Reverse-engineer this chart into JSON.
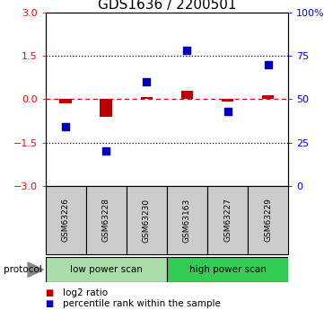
{
  "title": "GDS1636 / 2200501",
  "samples": [
    "GSM63226",
    "GSM63228",
    "GSM63230",
    "GSM63163",
    "GSM63227",
    "GSM63229"
  ],
  "log2_ratio": [
    -0.13,
    -0.62,
    0.08,
    0.28,
    -0.08,
    0.13
  ],
  "percentile_rank": [
    34,
    20,
    60,
    78,
    43,
    70
  ],
  "left_ylim": [
    -3,
    3
  ],
  "left_yticks": [
    -3,
    -1.5,
    0,
    1.5,
    3
  ],
  "right_yticks_pct": [
    0,
    25,
    50,
    75,
    100
  ],
  "bar_color": "#bb0000",
  "dot_color": "#0000bb",
  "dashed_line_color": "#cc0000",
  "dotted_line_color": "#000000",
  "protocol_groups": [
    {
      "label": "low power scan",
      "color": "#aaddaa"
    },
    {
      "label": "high power scan",
      "color": "#33cc55"
    }
  ],
  "protocol_label": "protocol",
  "legend_items": [
    {
      "label": "log2 ratio",
      "color": "#bb0000"
    },
    {
      "label": "percentile rank within the sample",
      "color": "#0000bb"
    }
  ],
  "bar_width": 0.3,
  "dot_size": 35,
  "title_fontsize": 11,
  "axis_fontsize": 8,
  "legend_fontsize": 8
}
